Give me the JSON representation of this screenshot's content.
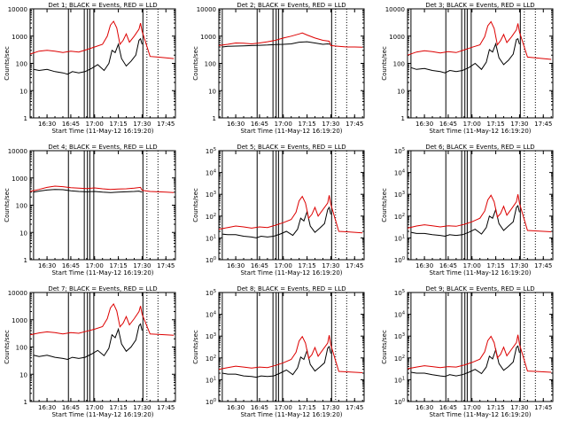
{
  "x_ticks": [
    "16:30",
    "16:45",
    "17:00",
    "17:15",
    "17:30",
    "17:45"
  ],
  "x_tick_minutes": [
    30,
    45,
    60,
    75,
    90,
    105
  ],
  "xlim_minutes": [
    19.33,
    111
  ],
  "xlabel": "Start Time (11-May-12 16:19:20)",
  "ylabel": "Counts/sec",
  "colors": {
    "events": "#000000",
    "lld": "#dd0000"
  },
  "solid_markers_minutes": [
    21.5,
    43.5,
    53.5,
    55.5,
    57,
    59.5,
    90.5
  ],
  "dotted_markers_minutes": [
    93,
    100
  ],
  "chart_data": [
    {
      "type": "line",
      "title": "Det 1; BLACK = Events, RED = LLD",
      "ylim": [
        1,
        10000
      ],
      "yticks": [
        "1",
        "10",
        "100",
        "1000",
        "10000"
      ],
      "series": [
        {
          "name": "Events",
          "x": [
            21.5,
            25,
            30,
            35,
            40,
            43,
            46,
            50,
            54,
            58,
            62,
            66,
            69,
            71,
            73,
            75,
            77,
            80,
            83,
            86,
            88,
            89,
            90
          ],
          "y": [
            60,
            55,
            60,
            50,
            45,
            40,
            50,
            45,
            50,
            65,
            90,
            55,
            100,
            300,
            250,
            500,
            150,
            80,
            120,
            200,
            700,
            800,
            500
          ]
        },
        {
          "name": "LLD",
          "x": [
            19.33,
            25,
            30,
            35,
            40,
            45,
            50,
            55,
            60,
            65,
            68,
            70,
            72,
            74,
            76,
            78,
            80,
            82,
            85,
            88,
            89,
            90,
            95,
            100,
            105,
            110
          ],
          "y": [
            220,
            280,
            300,
            280,
            250,
            280,
            260,
            320,
            400,
            500,
            1000,
            2500,
            3500,
            2000,
            500,
            700,
            1200,
            600,
            1000,
            1800,
            3000,
            1500,
            180,
            170,
            160,
            150
          ]
        }
      ]
    },
    {
      "type": "line",
      "title": "Det 2; BLACK = Events, RED = LLD",
      "ylim": [
        1,
        10000
      ],
      "yticks": [
        "1",
        "10",
        "100",
        "1000",
        "10000"
      ],
      "series": [
        {
          "name": "Events",
          "x": [
            21.5,
            25,
            30,
            35,
            40,
            45,
            50,
            55,
            60,
            65,
            70,
            75,
            80,
            85,
            88,
            90
          ],
          "y": [
            400,
            420,
            430,
            440,
            450,
            460,
            470,
            490,
            500,
            520,
            600,
            620,
            560,
            500,
            520,
            500
          ]
        },
        {
          "name": "LLD",
          "x": [
            19.33,
            25,
            30,
            35,
            40,
            45,
            50,
            55,
            60,
            65,
            70,
            72,
            75,
            80,
            85,
            89,
            90,
            95,
            100,
            105,
            110
          ],
          "y": [
            450,
            500,
            560,
            550,
            520,
            560,
            620,
            700,
            850,
            1000,
            1200,
            1300,
            1100,
            850,
            700,
            650,
            450,
            420,
            400,
            400,
            390
          ]
        }
      ]
    },
    {
      "type": "line",
      "title": "Det 3; BLACK = Events, RED = LLD",
      "ylim": [
        1,
        10000
      ],
      "yticks": [
        "1",
        "10",
        "100",
        "1000",
        "10000"
      ],
      "series": [
        {
          "name": "Events",
          "x": [
            21.5,
            25,
            30,
            35,
            40,
            43,
            46,
            50,
            54,
            58,
            62,
            66,
            69,
            71,
            73,
            75,
            77,
            80,
            83,
            86,
            88,
            89,
            90
          ],
          "y": [
            70,
            60,
            65,
            55,
            50,
            45,
            55,
            50,
            55,
            70,
            100,
            60,
            110,
            320,
            260,
            520,
            160,
            90,
            130,
            220,
            750,
            800,
            500
          ]
        },
        {
          "name": "LLD",
          "x": [
            19.33,
            25,
            30,
            35,
            40,
            45,
            50,
            55,
            60,
            65,
            68,
            70,
            72,
            74,
            76,
            78,
            80,
            82,
            85,
            88,
            89,
            90,
            95,
            100,
            105,
            110
          ],
          "y": [
            200,
            260,
            290,
            270,
            240,
            270,
            250,
            310,
            390,
            480,
            950,
            2400,
            3400,
            1900,
            480,
            680,
            1150,
            580,
            950,
            1700,
            2900,
            1400,
            170,
            160,
            150,
            140
          ]
        }
      ]
    },
    {
      "type": "line",
      "title": "Det 4; BLACK = Events, RED = LLD",
      "ylim": [
        1,
        10000
      ],
      "yticks": [
        "1",
        "10",
        "100",
        "1000",
        "10000"
      ],
      "series": [
        {
          "name": "Events",
          "x": [
            21.5,
            25,
            30,
            35,
            40,
            45,
            50,
            55,
            60,
            65,
            70,
            75,
            80,
            85,
            88,
            90
          ],
          "y": [
            300,
            330,
            360,
            380,
            370,
            340,
            320,
            310,
            320,
            300,
            290,
            300,
            310,
            320,
            330,
            300
          ]
        },
        {
          "name": "LLD",
          "x": [
            19.33,
            25,
            30,
            35,
            40,
            45,
            50,
            55,
            60,
            65,
            70,
            75,
            80,
            85,
            89,
            90,
            95,
            100,
            105,
            110
          ],
          "y": [
            320,
            380,
            450,
            500,
            480,
            440,
            420,
            410,
            430,
            400,
            380,
            390,
            400,
            420,
            450,
            350,
            320,
            310,
            300,
            290
          ]
        }
      ]
    },
    {
      "type": "line",
      "title": "Det 5; BLACK = Events, RED = LLD",
      "ylim": [
        1,
        100000
      ],
      "yticks": [
        "10^0",
        "10^1",
        "10^2",
        "10^3",
        "10^4",
        "10^5"
      ],
      "series": [
        {
          "name": "Events",
          "x": [
            21.5,
            25,
            30,
            35,
            40,
            43,
            46,
            50,
            54,
            58,
            62,
            66,
            69,
            71,
            73,
            75,
            77,
            80,
            83,
            86,
            88,
            89,
            90
          ],
          "y": [
            15,
            14,
            14,
            12,
            11,
            10,
            12,
            11,
            12,
            15,
            20,
            13,
            25,
            80,
            60,
            160,
            35,
            18,
            28,
            45,
            200,
            250,
            120
          ]
        },
        {
          "name": "LLD",
          "x": [
            19.33,
            25,
            30,
            35,
            40,
            45,
            50,
            55,
            60,
            65,
            68,
            70,
            72,
            74,
            76,
            78,
            80,
            82,
            85,
            88,
            89,
            90,
            95,
            100,
            105,
            110
          ],
          "y": [
            25,
            30,
            35,
            32,
            28,
            32,
            30,
            38,
            50,
            70,
            150,
            500,
            800,
            400,
            80,
            120,
            250,
            100,
            200,
            400,
            900,
            350,
            20,
            19,
            18,
            17
          ]
        }
      ]
    },
    {
      "type": "line",
      "title": "Det 6; BLACK = Events, RED = LLD",
      "ylim": [
        1,
        100000
      ],
      "yticks": [
        "10^0",
        "10^1",
        "10^2",
        "10^3",
        "10^4",
        "10^5"
      ],
      "series": [
        {
          "name": "Events",
          "x": [
            21.5,
            25,
            30,
            35,
            40,
            43,
            46,
            50,
            54,
            58,
            62,
            66,
            69,
            71,
            73,
            75,
            77,
            80,
            83,
            86,
            88,
            89,
            90
          ],
          "y": [
            18,
            16,
            16,
            14,
            13,
            12,
            14,
            13,
            14,
            18,
            25,
            15,
            30,
            100,
            80,
            200,
            45,
            22,
            35,
            55,
            250,
            300,
            150
          ]
        },
        {
          "name": "LLD",
          "x": [
            19.33,
            25,
            30,
            35,
            40,
            45,
            50,
            55,
            60,
            65,
            68,
            70,
            72,
            74,
            76,
            78,
            80,
            82,
            85,
            88,
            89,
            90,
            95,
            100,
            105,
            110
          ],
          "y": [
            28,
            35,
            40,
            36,
            32,
            36,
            34,
            42,
            55,
            80,
            170,
            550,
            900,
            450,
            90,
            130,
            280,
            110,
            220,
            450,
            1000,
            380,
            22,
            21,
            20,
            19
          ]
        }
      ]
    },
    {
      "type": "line",
      "title": "Det 7; BLACK = Events, RED = LLD",
      "ylim": [
        1,
        10000
      ],
      "yticks": [
        "1",
        "10",
        "100",
        "1000",
        "10000"
      ],
      "series": [
        {
          "name": "Events",
          "x": [
            21.5,
            25,
            30,
            35,
            40,
            43,
            46,
            50,
            54,
            58,
            62,
            66,
            69,
            71,
            73,
            75,
            77,
            80,
            83,
            86,
            88,
            89,
            90
          ],
          "y": [
            50,
            45,
            50,
            42,
            38,
            35,
            42,
            38,
            42,
            55,
            75,
            48,
            90,
            280,
            220,
            450,
            130,
            70,
            100,
            180,
            600,
            700,
            400
          ]
        },
        {
          "name": "LLD",
          "x": [
            19.33,
            25,
            30,
            35,
            40,
            45,
            50,
            55,
            60,
            65,
            68,
            70,
            72,
            74,
            76,
            78,
            80,
            82,
            85,
            88,
            89,
            90,
            95,
            100,
            105,
            110
          ],
          "y": [
            280,
            330,
            360,
            340,
            300,
            340,
            320,
            380,
            450,
            560,
            1100,
            2700,
            3800,
            2100,
            550,
            750,
            1300,
            650,
            1100,
            2000,
            3200,
            1600,
            300,
            290,
            280,
            270
          ]
        }
      ]
    },
    {
      "type": "line",
      "title": "Det 8; BLACK = Events, RED = LLD",
      "ylim": [
        1,
        100000
      ],
      "yticks": [
        "10^0",
        "10^1",
        "10^2",
        "10^3",
        "10^4",
        "10^5"
      ],
      "series": [
        {
          "name": "Events",
          "x": [
            21.5,
            25,
            30,
            35,
            40,
            43,
            46,
            50,
            54,
            58,
            62,
            66,
            69,
            71,
            73,
            75,
            77,
            80,
            83,
            86,
            88,
            89,
            90
          ],
          "y": [
            20,
            18,
            18,
            15,
            14,
            13,
            15,
            14,
            15,
            20,
            28,
            17,
            35,
            110,
            85,
            220,
            50,
            25,
            38,
            60,
            280,
            330,
            160
          ]
        },
        {
          "name": "LLD",
          "x": [
            19.33,
            25,
            30,
            35,
            40,
            45,
            50,
            55,
            60,
            65,
            68,
            70,
            72,
            74,
            76,
            78,
            80,
            82,
            85,
            88,
            89,
            90,
            95,
            100,
            105,
            110
          ],
          "y": [
            30,
            36,
            42,
            38,
            34,
            38,
            36,
            45,
            60,
            85,
            180,
            600,
            950,
            480,
            95,
            140,
            300,
            120,
            240,
            480,
            1100,
            400,
            24,
            23,
            22,
            21
          ]
        }
      ]
    },
    {
      "type": "line",
      "title": "Det 9; BLACK = Events, RED = LLD",
      "ylim": [
        1,
        100000
      ],
      "yticks": [
        "10^0",
        "10^1",
        "10^2",
        "10^3",
        "10^4",
        "10^5"
      ],
      "series": [
        {
          "name": "Events",
          "x": [
            21.5,
            25,
            30,
            35,
            40,
            43,
            46,
            50,
            54,
            58,
            62,
            66,
            69,
            71,
            73,
            75,
            77,
            80,
            83,
            86,
            88,
            89,
            90
          ],
          "y": [
            22,
            20,
            20,
            17,
            15,
            14,
            17,
            15,
            17,
            22,
            30,
            19,
            38,
            120,
            90,
            240,
            55,
            27,
            40,
            65,
            300,
            350,
            170
          ]
        },
        {
          "name": "LLD",
          "x": [
            19.33,
            25,
            30,
            35,
            40,
            45,
            50,
            55,
            60,
            65,
            68,
            70,
            72,
            74,
            76,
            78,
            80,
            82,
            85,
            88,
            89,
            90,
            95,
            100,
            105,
            110
          ],
          "y": [
            32,
            38,
            44,
            40,
            36,
            40,
            38,
            47,
            62,
            88,
            190,
            620,
            980,
            500,
            100,
            145,
            310,
            125,
            250,
            500,
            1150,
            420,
            25,
            24,
            23,
            22
          ]
        }
      ]
    }
  ]
}
